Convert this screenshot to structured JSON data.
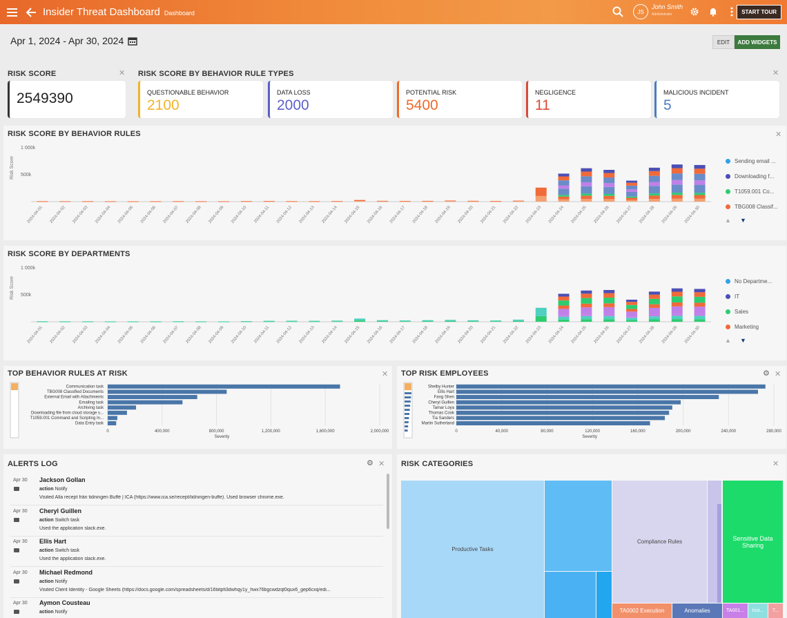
{
  "header": {
    "title": "Insider Threat Dashboard",
    "subtitle": "Dashboard",
    "user_name": "John Smith",
    "user_role": "Administrator",
    "initials": "JS",
    "tour_label": "START TOUR"
  },
  "toolbar": {
    "date_range": "Apr 1, 2024 - Apr 30, 2024",
    "edit_label": "EDIT",
    "add_label": "ADD WIDGETS"
  },
  "risk_score": {
    "title": "RISK SCORE",
    "value": "2549390"
  },
  "rule_types": {
    "title": "RISK SCORE BY BEHAVIOR RULE TYPES",
    "cards": [
      {
        "label": "QUESTIONABLE BEHAVIOR",
        "value": "2100",
        "color": "#f0b428"
      },
      {
        "label": "DATA LOSS",
        "value": "2000",
        "color": "#5b5fc7"
      },
      {
        "label": "POTENTIAL RISK",
        "value": "5400",
        "color": "#f06a28"
      },
      {
        "label": "NEGLIGENCE",
        "value": "11",
        "color": "#d94a3a"
      },
      {
        "label": "MALICIOUS INCIDENT",
        "value": "5",
        "color": "#4a7cc0"
      }
    ]
  },
  "behavior_chart": {
    "title": "RISK SCORE BY BEHAVIOR RULES",
    "ylabel": "Risk Score",
    "yticks": [
      "1 000k",
      "500k"
    ],
    "legend": [
      {
        "name": "Sending email ...",
        "color": "#2fa3e6"
      },
      {
        "name": "Downloading f...",
        "color": "#4b4fb5"
      },
      {
        "name": "T1059.001 Co...",
        "color": "#2ecc71"
      },
      {
        "name": "TBG008 Classif...",
        "color": "#f06a3a"
      }
    ]
  },
  "dept_chart": {
    "title": "RISK SCORE BY DEPARTMENTS",
    "ylabel": "Risk Score",
    "yticks": [
      "1 000k",
      "500k"
    ],
    "legend": [
      {
        "name": "No Departme...",
        "color": "#2fa3e6"
      },
      {
        "name": "IT",
        "color": "#4b4fb5"
      },
      {
        "name": "Sales",
        "color": "#2ecc71"
      },
      {
        "name": "Marketing",
        "color": "#f06a3a"
      }
    ]
  },
  "dates": [
    "2024-04-01",
    "2024-04-02",
    "2024-04-03",
    "2024-04-04",
    "2024-04-05",
    "2024-04-06",
    "2024-04-07",
    "2024-04-08",
    "2024-04-09",
    "2024-04-10",
    "2024-04-11",
    "2024-04-12",
    "2024-04-13",
    "2024-04-14",
    "2024-04-15",
    "2024-04-16",
    "2024-04-17",
    "2024-04-18",
    "2024-04-19",
    "2024-04-20",
    "2024-04-21",
    "2024-04-22",
    "2024-04-23",
    "2024-04-24",
    "2024-04-25",
    "2024-04-26",
    "2024-04-27",
    "2024-04-28",
    "2024-04-29",
    "2024-04-30"
  ],
  "behavior_totals": [
    8000,
    7000,
    8000,
    7000,
    6000,
    7000,
    8000,
    7000,
    6000,
    10000,
    12000,
    9000,
    8000,
    10000,
    30000,
    15000,
    12000,
    14000,
    20000,
    15000,
    12000,
    18000,
    260000,
    520000,
    620000,
    590000,
    390000,
    630000,
    690000,
    680000
  ],
  "dept_totals": [
    10000,
    9000,
    9000,
    8000,
    8000,
    9000,
    10000,
    8000,
    8000,
    12000,
    18000,
    20000,
    18000,
    22000,
    60000,
    30000,
    25000,
    30000,
    35000,
    28000,
    25000,
    40000,
    260000,
    520000,
    580000,
    590000,
    410000,
    560000,
    620000,
    610000
  ],
  "top_rules": {
    "title": "TOP BEHAVIOR RULES AT RISK",
    "xlabel": "Severity",
    "items": [
      {
        "label": "Communication task",
        "value": 2050000
      },
      {
        "label": "TBG008 Classified Documents",
        "value": 1050000
      },
      {
        "label": "External Email with Attachments",
        "value": 790000
      },
      {
        "label": "Emailing task",
        "value": 660000
      },
      {
        "label": "Archiving task",
        "value": 250000
      },
      {
        "label": "Downloading file from cloud storage s...",
        "value": 170000
      },
      {
        "label": "T1059.001 Command and Scripting In...",
        "value": 85000
      },
      {
        "label": "Data Entry task",
        "value": 75000
      }
    ],
    "xticks": [
      "0",
      "400,000",
      "800,000",
      "1,200,000",
      "1,600,000",
      "2,000,000"
    ]
  },
  "top_employees": {
    "title": "TOP RISK EMPLOYEES",
    "xlabel": "Severity",
    "items": [
      {
        "label": "Shelby Hunter",
        "value": 292000
      },
      {
        "label": "Ellis Hart",
        "value": 285000
      },
      {
        "label": "Fang Shen",
        "value": 248000
      },
      {
        "label": "Cheryl Guillen",
        "value": 212000
      },
      {
        "label": "Tamar Loya",
        "value": 204000
      },
      {
        "label": "Thomas Cook",
        "value": 201000
      },
      {
        "label": "Tia Sanders",
        "value": 197000
      },
      {
        "label": "Martin Sutherland",
        "value": 183000
      }
    ],
    "xticks": [
      "0",
      "40,000",
      "80,000",
      "120,000",
      "160,000",
      "200,000",
      "240,000",
      "280,000"
    ]
  },
  "alerts": {
    "title": "ALERTS LOG",
    "items": [
      {
        "date": "Apr 30",
        "name": "Jackson Gollan",
        "action": "Notify",
        "desc": "Visited Alla recept från tidningen Buffé | ICA (https://www.ica.se/recept/tidningen-buffe). Used browser chrome.exe."
      },
      {
        "date": "Apr 30",
        "name": "Cheryl Guillen",
        "action": "Switch task",
        "desc": "Used the application slack.exe."
      },
      {
        "date": "Apr 30",
        "name": "Ellis Hart",
        "action": "Switch task",
        "desc": "Used the application slack.exe."
      },
      {
        "date": "Apr 30",
        "name": "Michael Redmond",
        "action": "Notify",
        "desc": "Visited Client Identity - Google Sheets (https://docs.google.com/spreadsheets/d/16tiitpfi3dwhqy1y_hwx76bgcwdzqt0qux6_gep6cxq/edi..."
      },
      {
        "date": "Apr 30",
        "name": "Aymon Cousteau",
        "action": "Notify",
        "desc": ""
      }
    ]
  },
  "risk_categories": {
    "title": "RISK CATEGORIES",
    "tiles": [
      "Productive Tasks",
      "Compliance Rules",
      "Sensitive Data Sharing",
      "TA0002 Execution",
      "Anomalies",
      "TA001...",
      "Insi...",
      "T..."
    ]
  }
}
